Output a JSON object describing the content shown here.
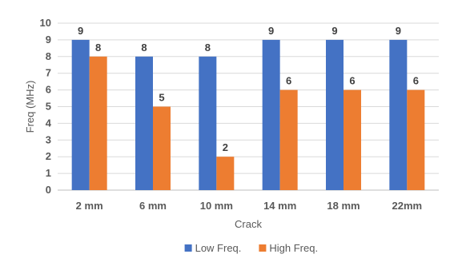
{
  "chart_data": {
    "type": "bar",
    "categories": [
      "2 mm",
      "6 mm",
      "10 mm",
      "14 mm",
      "18 mm",
      "22mm"
    ],
    "series": [
      {
        "name": "Low Freq.",
        "values": [
          9,
          8,
          8,
          9,
          9,
          9
        ],
        "color": "#4472C4"
      },
      {
        "name": "High Freq.",
        "values": [
          8,
          5,
          2,
          6,
          6,
          6
        ],
        "color": "#ED7D31"
      }
    ],
    "title": "",
    "xlabel": "Crack",
    "ylabel": "Freq (MHz)",
    "ylim": [
      0,
      10
    ],
    "yticks": [
      0,
      1,
      2,
      3,
      4,
      5,
      6,
      7,
      8,
      9,
      10
    ],
    "grid": true,
    "legend_position": "bottom",
    "data_labels": true
  }
}
